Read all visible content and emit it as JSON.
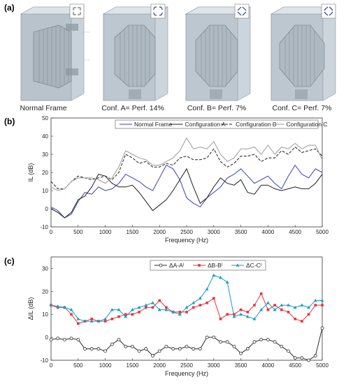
{
  "panels": {
    "a": {
      "label": "(a)",
      "captions": [
        "Normal Frame",
        "Conf. A= Perf. 14%",
        "Conf. B= Perf. 7%",
        "Conf. C= Perf. 7%"
      ],
      "corner_icon_color": "#2b3a9e"
    },
    "b": {
      "label": "(b)"
    },
    "c": {
      "label": "(c)"
    }
  },
  "chart_data": [
    {
      "type": "line",
      "panel": "b",
      "xlabel": "Frequency (Hz)",
      "ylabel": "IL (dB)",
      "xlim": [
        0,
        5000
      ],
      "ylim": [
        -10,
        50
      ],
      "xticks": [
        0,
        500,
        1000,
        1500,
        2000,
        2500,
        3000,
        3500,
        4000,
        4500,
        5000
      ],
      "yticks": [
        -10,
        0,
        10,
        20,
        30,
        40,
        50
      ],
      "grid": false,
      "legend": "top",
      "x": [
        0,
        125,
        250,
        375,
        500,
        625,
        750,
        875,
        1000,
        1125,
        1250,
        1375,
        1500,
        1625,
        1750,
        1875,
        2000,
        2125,
        2250,
        2375,
        2500,
        2625,
        2750,
        2875,
        3000,
        3125,
        3250,
        3375,
        3500,
        3625,
        3750,
        3875,
        4000,
        4125,
        4250,
        4375,
        4500,
        4625,
        4750,
        4875,
        5000
      ],
      "series": [
        {
          "name": "Normal Frame",
          "color": "#3a3fbf",
          "dash": "solid",
          "values": [
            1,
            -1,
            -5,
            -3,
            4,
            9,
            8,
            12,
            10,
            11,
            14,
            19,
            17,
            15,
            12,
            10,
            17,
            24,
            22,
            16,
            6,
            3,
            1,
            6,
            9,
            12,
            17,
            19,
            22,
            18,
            14,
            16,
            18,
            14,
            11,
            18,
            24,
            19,
            17,
            22,
            20
          ]
        },
        {
          "name": "Configuration A",
          "color": "#1e1e1e",
          "dash": "solid",
          "values": [
            0,
            -2,
            -5,
            -2,
            5,
            7,
            12,
            19,
            18,
            14,
            12,
            12,
            13,
            9,
            4,
            -1,
            2,
            5,
            10,
            16,
            22,
            12,
            3,
            6,
            12,
            17,
            14,
            13,
            16,
            9,
            8,
            13,
            13,
            11,
            10,
            11,
            12,
            11,
            11,
            14,
            19
          ]
        },
        {
          "name": "Configuration B",
          "color": "#1e1e1e",
          "dash": "dashed",
          "values": [
            15,
            11,
            11,
            15,
            18,
            17,
            16,
            17,
            18,
            16,
            20,
            30,
            28,
            25,
            26,
            23,
            23,
            25,
            24,
            28,
            29,
            27,
            27,
            28,
            33,
            26,
            23,
            25,
            29,
            29,
            30,
            26,
            28,
            28,
            32,
            30,
            34,
            31,
            32,
            33,
            29
          ]
        },
        {
          "name": "Configuration C",
          "color": "#9a9a9a",
          "dash": "solid",
          "values": [
            12,
            10,
            11,
            15,
            17,
            17,
            17,
            16,
            14,
            17,
            23,
            32,
            30,
            28,
            27,
            24,
            24,
            26,
            28,
            32,
            39,
            33,
            34,
            33,
            37,
            30,
            26,
            28,
            33,
            33,
            34,
            30,
            35,
            30,
            34,
            33,
            36,
            33,
            35,
            35,
            27
          ]
        }
      ]
    },
    {
      "type": "line",
      "panel": "c",
      "xlabel": "Frequency (Hz)",
      "ylabel": "ΔIL (dB)",
      "xlim": [
        0,
        5000
      ],
      "ylim": [
        -10,
        35
      ],
      "xticks": [
        0,
        500,
        1000,
        1500,
        2000,
        2500,
        3000,
        3500,
        4000,
        4500,
        5000
      ],
      "yticks": [
        -10,
        0,
        10,
        20,
        30
      ],
      "grid": false,
      "legend": "top",
      "x": [
        0,
        125,
        250,
        375,
        500,
        625,
        750,
        875,
        1000,
        1125,
        1250,
        1375,
        1500,
        1625,
        1750,
        1875,
        2000,
        2125,
        2250,
        2375,
        2500,
        2625,
        2750,
        2875,
        3000,
        3125,
        3250,
        3375,
        3500,
        3625,
        3750,
        3875,
        4000,
        4125,
        4250,
        4375,
        4500,
        4625,
        4750,
        4875,
        5000
      ],
      "series": [
        {
          "name": "ΔA-Aˡ",
          "color": "#2b2b2b",
          "marker": "circle",
          "values": [
            -1,
            -0.5,
            -1,
            -0.5,
            -1,
            -5,
            -5,
            -5,
            -6,
            -3,
            -1,
            -4,
            -4,
            -6,
            -5,
            -8,
            -6,
            -4,
            -5,
            -5,
            -4,
            -5,
            -5,
            0,
            0,
            -2,
            -2,
            -4,
            -7,
            -5,
            -2,
            -1,
            -1,
            -2,
            -4,
            -6,
            -9,
            -9,
            -10,
            -8,
            4
          ]
        },
        {
          "name": "ΔB-Bˡ",
          "color": "#e8343a",
          "marker": "square",
          "values": [
            14,
            13,
            13,
            10,
            6,
            7,
            8,
            7,
            7,
            8,
            9,
            10,
            10,
            11,
            13,
            13,
            16,
            13,
            11,
            11,
            11,
            13,
            14,
            15,
            17,
            8,
            10,
            10,
            12,
            11,
            14,
            19,
            12,
            14,
            12,
            11,
            8,
            7,
            10,
            14,
            14
          ]
        },
        {
          "name": "ΔC-Cˡ",
          "color": "#1a9bc9",
          "marker": "triangle",
          "values": [
            14,
            13.5,
            13,
            12,
            8,
            7,
            7,
            7,
            8,
            12,
            12,
            9,
            12,
            13,
            14,
            15,
            12,
            12,
            11,
            10,
            13,
            15,
            17,
            21,
            27,
            26,
            24,
            9,
            10,
            9,
            8,
            12,
            15,
            12,
            14,
            14,
            13,
            14,
            13,
            16,
            16
          ]
        }
      ]
    }
  ]
}
